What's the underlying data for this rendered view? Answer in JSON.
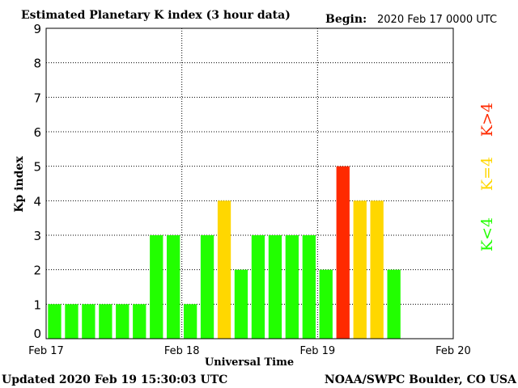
{
  "header": {
    "title": "Estimated Planetary K index (3 hour data)",
    "begin_label": "Begin:",
    "begin_value": "2020 Feb 17 0000 UTC"
  },
  "footer": {
    "updated": "Updated 2020 Feb 19 15:30:03 UTC",
    "credit": "NOAA/SWPC Boulder, CO USA"
  },
  "legend": {
    "items": [
      {
        "label": "K<4",
        "color": "#22ff00"
      },
      {
        "label": "K=4",
        "color": "#ffd700"
      },
      {
        "label": "K>4",
        "color": "#ff2a00"
      }
    ]
  },
  "chart_data": {
    "type": "bar",
    "ylabel": "Kp index",
    "xlabel": "Universal Time",
    "ylim": [
      0,
      9
    ],
    "yticks": [
      0,
      1,
      2,
      3,
      4,
      5,
      6,
      7,
      8,
      9
    ],
    "xticks": [
      "Feb 17",
      "Feb 18",
      "Feb 19",
      "Feb 20"
    ],
    "slots_total": 24,
    "grid": true,
    "values": [
      1,
      1,
      1,
      1,
      1,
      1,
      3,
      3,
      1,
      3,
      4,
      2,
      3,
      3,
      3,
      3,
      2,
      5,
      4,
      4,
      2
    ],
    "colors": {
      "low": "#22ff00",
      "equal": "#ffd700",
      "high": "#ff2a00"
    }
  }
}
